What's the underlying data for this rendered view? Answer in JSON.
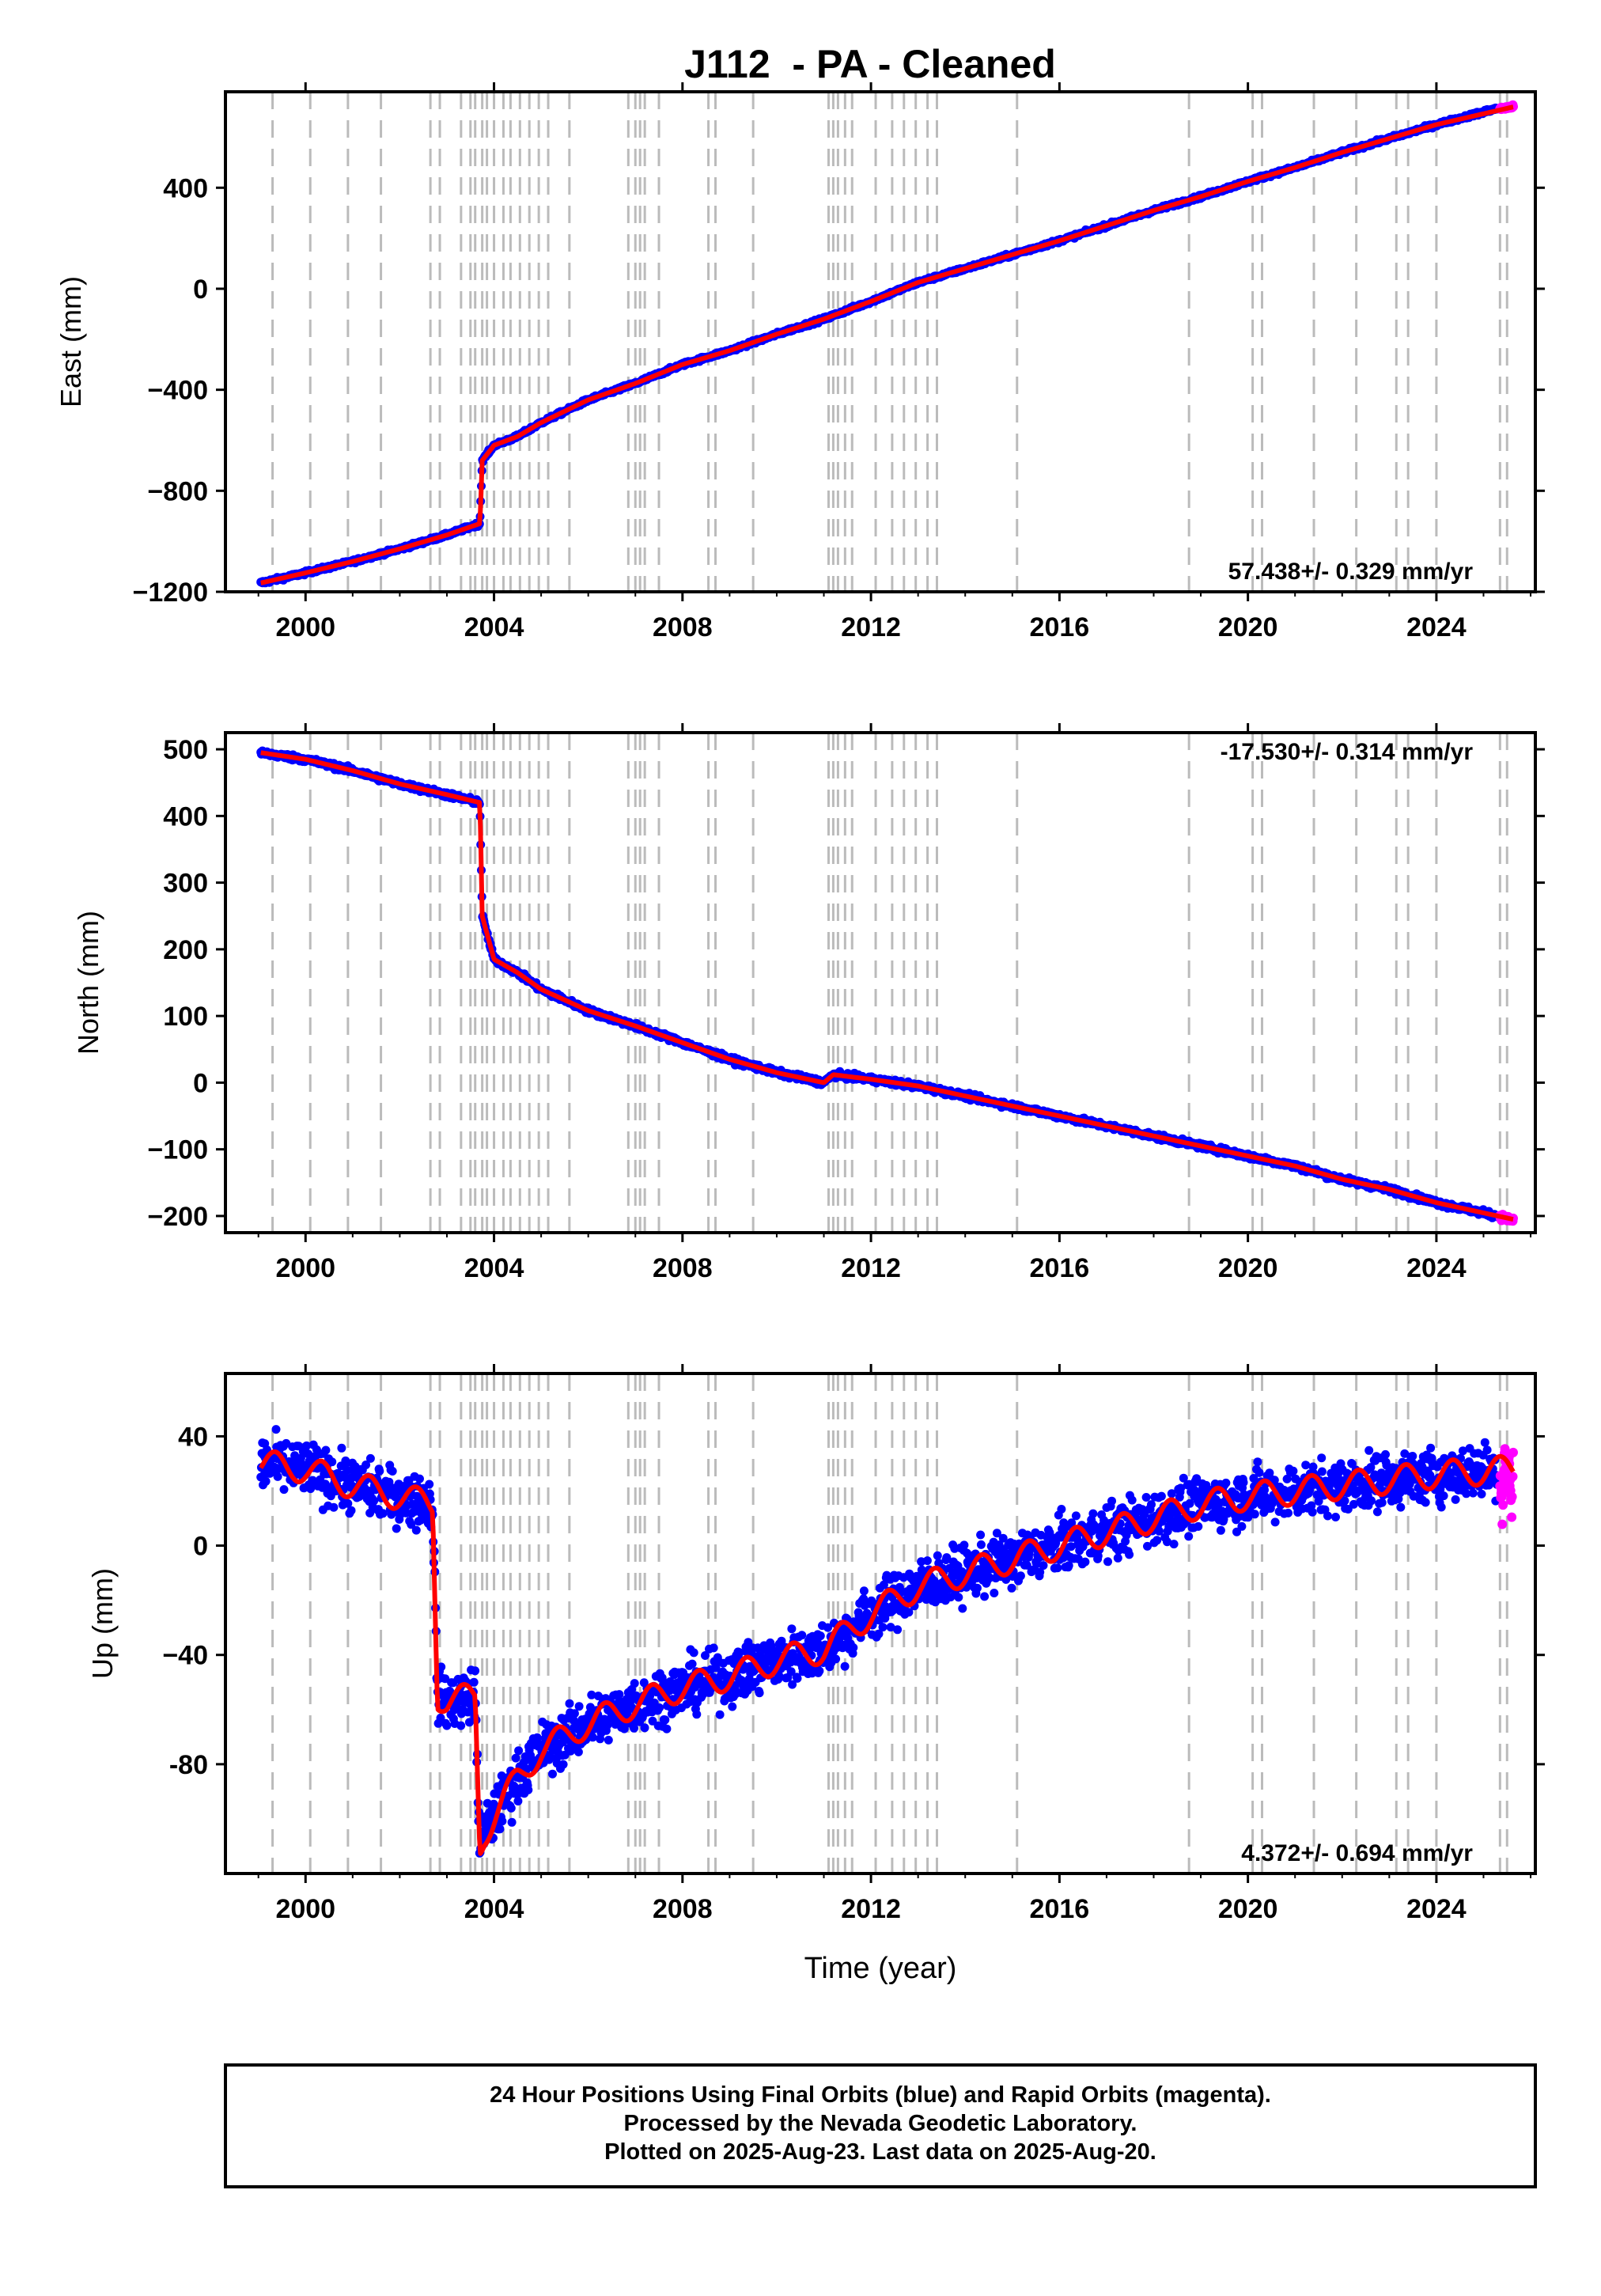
{
  "figure": {
    "title": "J112  - PA - Cleaned",
    "footer": [
      "24 Hour Positions Using Final Orbits (blue) and Rapid Orbits (magenta).",
      "Processed by the Nevada Geodetic Laboratory.",
      "Plotted on 2025-Aug-23. Last data on 2025-Aug-20."
    ],
    "colors": {
      "final_orbits": "#0000ff",
      "rapid_orbits": "#ff00ff",
      "model_fit": "#ff0000",
      "event_lines": "#bbbbbb"
    }
  },
  "chart_data": [
    {
      "type": "scatter",
      "panel": "east",
      "ylabel": "East (mm)",
      "xlabel": "",
      "xlim": [
        1998.3,
        2026.1
      ],
      "ylim": [
        -1200,
        780
      ],
      "yticks": [
        -1200,
        -800,
        -400,
        0,
        400
      ],
      "yticklabels": [
        "−1200",
        "−800",
        "−400",
        "0",
        "400"
      ],
      "xticks": [
        2000,
        2004,
        2008,
        2012,
        2016,
        2020,
        2024
      ],
      "xticklabels": [
        "2000",
        "2004",
        "2008",
        "2012",
        "2016",
        "2020",
        "2024"
      ],
      "rate_label": "57.438+/- 0.329 mm/yr",
      "rate_position": "bottom-right",
      "grid": false,
      "series": [
        {
          "role": "final-orbits",
          "color": "#0000ff",
          "x": [
            1999.05,
            2000.0,
            2001.0,
            2002.0,
            2003.0,
            2003.7,
            2003.75,
            2004.0,
            2004.5,
            2005.0,
            2006.0,
            2007.0,
            2008.0,
            2009.0,
            2010.0,
            2011.0,
            2012.0,
            2013.0,
            2014.0,
            2015.0,
            2016.0,
            2017.0,
            2018.0,
            2019.0,
            2020.0,
            2021.0,
            2022.0,
            2023.0,
            2024.0,
            2025.3
          ],
          "y": [
            -1165,
            -1125,
            -1080,
            -1030,
            -975,
            -930,
            -680,
            -620,
            -585,
            -530,
            -440,
            -375,
            -300,
            -245,
            -180,
            -120,
            -50,
            25,
            80,
            135,
            190,
            250,
            310,
            365,
            425,
            480,
            540,
            595,
            650,
            715
          ],
          "noise": 5
        },
        {
          "role": "rapid-orbits",
          "color": "#ff00ff",
          "x": [
            2025.35,
            2025.45,
            2025.55,
            2025.63
          ],
          "y": [
            712,
            716,
            718,
            722
          ],
          "noise": 4
        },
        {
          "role": "model-fit",
          "color": "#ff0000",
          "x": [
            1999.05,
            2000.0,
            2001.0,
            2002.0,
            2003.0,
            2003.7,
            2003.75,
            2004.0,
            2004.5,
            2005.0,
            2006.0,
            2007.0,
            2008.0,
            2009.0,
            2010.0,
            2011.0,
            2012.0,
            2013.0,
            2014.0,
            2015.0,
            2016.0,
            2017.0,
            2018.0,
            2019.0,
            2020.0,
            2021.0,
            2022.0,
            2023.0,
            2024.0,
            2025.63
          ],
          "y": [
            -1165,
            -1125,
            -1080,
            -1030,
            -975,
            -930,
            -680,
            -620,
            -585,
            -530,
            -440,
            -375,
            -300,
            -245,
            -180,
            -120,
            -50,
            25,
            80,
            135,
            190,
            250,
            310,
            365,
            425,
            480,
            540,
            595,
            650,
            720
          ]
        }
      ]
    },
    {
      "type": "scatter",
      "panel": "north",
      "ylabel": "North (mm)",
      "xlabel": "",
      "xlim": [
        1998.3,
        2026.1
      ],
      "ylim": [
        -225,
        525
      ],
      "yticks": [
        -200,
        -100,
        0,
        100,
        200,
        300,
        400,
        500
      ],
      "yticklabels": [
        "−200",
        "−100",
        "0",
        "100",
        "200",
        "300",
        "400",
        "500"
      ],
      "xticks": [
        2000,
        2004,
        2008,
        2012,
        2016,
        2020,
        2024
      ],
      "xticklabels": [
        "2000",
        "2004",
        "2008",
        "2012",
        "2016",
        "2020",
        "2024"
      ],
      "rate_label": "-17.530+/- 0.314 mm/yr",
      "rate_position": "top-right",
      "grid": false,
      "series": [
        {
          "role": "final-orbits",
          "color": "#0000ff",
          "x": [
            1999.05,
            2000.0,
            2001.0,
            2002.0,
            2003.0,
            2003.7,
            2003.75,
            2004.0,
            2004.5,
            2005.0,
            2006.0,
            2007.0,
            2008.0,
            2009.0,
            2010.0,
            2011.0,
            2011.2,
            2012.0,
            2013.0,
            2014.0,
            2015.0,
            2016.0,
            2017.0,
            2018.0,
            2019.0,
            2020.0,
            2021.0,
            2022.0,
            2023.0,
            2024.0,
            2025.3
          ],
          "y": [
            495,
            485,
            468,
            448,
            432,
            420,
            250,
            185,
            165,
            140,
            108,
            85,
            60,
            35,
            15,
            0,
            12,
            5,
            -5,
            -20,
            -35,
            -50,
            -65,
            -80,
            -95,
            -110,
            -125,
            -145,
            -160,
            -180,
            -200
          ],
          "noise": 3
        },
        {
          "role": "rapid-orbits",
          "color": "#ff00ff",
          "x": [
            2025.35,
            2025.45,
            2025.55,
            2025.63
          ],
          "y": [
            -201,
            -203,
            -205,
            -206
          ],
          "noise": 3
        },
        {
          "role": "model-fit",
          "color": "#ff0000",
          "x": [
            1999.05,
            2000.0,
            2001.0,
            2002.0,
            2003.0,
            2003.7,
            2003.75,
            2004.0,
            2004.5,
            2005.0,
            2006.0,
            2007.0,
            2008.0,
            2009.0,
            2010.0,
            2011.0,
            2011.2,
            2012.0,
            2013.0,
            2014.0,
            2015.0,
            2016.0,
            2017.0,
            2018.0,
            2019.0,
            2020.0,
            2021.0,
            2022.0,
            2023.0,
            2024.0,
            2025.63
          ],
          "y": [
            495,
            485,
            468,
            448,
            432,
            420,
            250,
            185,
            165,
            140,
            108,
            85,
            60,
            35,
            15,
            0,
            12,
            5,
            -5,
            -20,
            -35,
            -50,
            -65,
            -80,
            -95,
            -110,
            -125,
            -145,
            -160,
            -180,
            -205
          ]
        }
      ]
    },
    {
      "type": "scatter",
      "panel": "up",
      "ylabel": "Up (mm)",
      "xlabel": "Time (year)",
      "xlim": [
        1998.3,
        2026.1
      ],
      "ylim": [
        -120,
        63
      ],
      "yticks": [
        -80,
        -40,
        0,
        40
      ],
      "yticklabels": [
        "-80",
        "−40",
        "0",
        "40"
      ],
      "xticks": [
        2000,
        2004,
        2008,
        2012,
        2016,
        2020,
        2024
      ],
      "xticklabels": [
        "2000",
        "2004",
        "2008",
        "2012",
        "2016",
        "2020",
        "2024"
      ],
      "rate_label": "4.372+/- 0.694 mm/yr",
      "rate_position": "bottom-right",
      "grid": false,
      "series": [
        {
          "role": "final-orbits",
          "color": "#0000ff",
          "x": [
            1999.05,
            2000.0,
            2001.0,
            2002.0,
            2002.7,
            2002.8,
            2003.0,
            2003.6,
            2003.7,
            2003.8,
            2004.5,
            2005.0,
            2006.0,
            2007.0,
            2008.0,
            2009.0,
            2010.0,
            2011.0,
            2012.0,
            2013.0,
            2014.0,
            2015.0,
            2016.0,
            2017.0,
            2018.0,
            2019.0,
            2020.0,
            2021.0,
            2022.0,
            2023.0,
            2024.0,
            2025.3
          ],
          "y": [
            30,
            28,
            22,
            18,
            15,
            -55,
            -57,
            -55,
            -110,
            -105,
            -85,
            -75,
            -65,
            -58,
            -52,
            -48,
            -42,
            -38,
            -25,
            -15,
            -10,
            -5,
            0,
            5,
            10,
            15,
            18,
            20,
            22,
            24,
            26,
            28
          ],
          "noise": 7
        },
        {
          "role": "rapid-orbits",
          "color": "#ff00ff",
          "x": [
            2025.35,
            2025.4,
            2025.45,
            2025.5,
            2025.55,
            2025.6,
            2025.63
          ],
          "y": [
            25,
            15,
            35,
            20,
            30,
            12,
            33
          ],
          "noise": 5
        },
        {
          "role": "model-fit",
          "color": "#ff0000",
          "x": [
            1999.05,
            2000.0,
            2001.0,
            2002.0,
            2002.7,
            2002.8,
            2003.0,
            2003.6,
            2003.7,
            2003.8,
            2004.5,
            2005.0,
            2006.0,
            2007.0,
            2008.0,
            2009.0,
            2010.0,
            2011.0,
            2012.0,
            2013.0,
            2014.0,
            2015.0,
            2016.0,
            2017.0,
            2018.0,
            2019.0,
            2020.0,
            2021.0,
            2022.0,
            2023.0,
            2024.0,
            2025.63
          ],
          "y": [
            30,
            28,
            22,
            18,
            15,
            -55,
            -57,
            -55,
            -110,
            -105,
            -85,
            -75,
            -65,
            -58,
            -52,
            -48,
            -42,
            -38,
            -25,
            -15,
            -10,
            -5,
            0,
            5,
            10,
            15,
            18,
            20,
            22,
            24,
            26,
            28
          ],
          "seasonal": 5
        }
      ]
    }
  ],
  "event_lines": [
    1999.3,
    2000.1,
    2000.9,
    2001.6,
    2002.65,
    2002.85,
    2003.3,
    2003.5,
    2003.6,
    2003.75,
    2003.85,
    2004.0,
    2004.2,
    2004.35,
    2004.55,
    2004.75,
    2004.95,
    2005.15,
    2005.6,
    2006.85,
    2007.0,
    2007.1,
    2007.2,
    2007.5,
    2008.55,
    2008.7,
    2009.5,
    2011.1,
    2011.2,
    2011.3,
    2011.45,
    2011.6,
    2012.1,
    2012.45,
    2012.7,
    2012.95,
    2013.2,
    2013.4,
    2015.1,
    2018.75,
    2020.1,
    2020.3,
    2021.4,
    2022.3,
    2023.15,
    2023.4,
    2024.0,
    2025.35,
    2025.5
  ]
}
